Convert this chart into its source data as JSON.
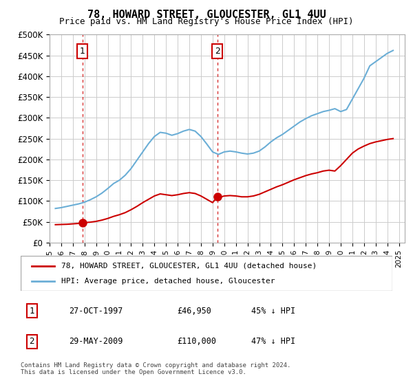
{
  "title": "78, HOWARD STREET, GLOUCESTER, GL1 4UU",
  "subtitle": "Price paid vs. HM Land Registry's House Price Index (HPI)",
  "legend_line1": "78, HOWARD STREET, GLOUCESTER, GL1 4UU (detached house)",
  "legend_line2": "HPI: Average price, detached house, Gloucester",
  "footer": "Contains HM Land Registry data © Crown copyright and database right 2024.\nThis data is licensed under the Open Government Licence v3.0.",
  "transactions": [
    {
      "num": 1,
      "date": "27-OCT-1997",
      "price": "£46,950",
      "pct": "45% ↓ HPI",
      "year": 1997.82,
      "value": 46950
    },
    {
      "num": 2,
      "date": "29-MAY-2009",
      "price": "£110,000",
      "pct": "47% ↓ HPI",
      "year": 2009.41,
      "value": 110000
    }
  ],
  "hpi_color": "#6baed6",
  "price_color": "#cc0000",
  "marker_color": "#cc0000",
  "vline_color": "#cc0000",
  "ylim": [
    0,
    500000
  ],
  "xlim_start": 1995.0,
  "xlim_end": 2025.5,
  "yticks": [
    0,
    50000,
    100000,
    150000,
    200000,
    250000,
    300000,
    350000,
    400000,
    450000,
    500000
  ],
  "ytick_labels": [
    "£0",
    "£50K",
    "£100K",
    "£150K",
    "£200K",
    "£250K",
    "£300K",
    "£350K",
    "£400K",
    "£450K",
    "£500K"
  ],
  "hpi_data": {
    "years": [
      1995.5,
      1996.0,
      1996.5,
      1997.0,
      1997.5,
      1998.0,
      1998.5,
      1999.0,
      1999.5,
      2000.0,
      2000.5,
      2001.0,
      2001.5,
      2002.0,
      2002.5,
      2003.0,
      2003.5,
      2004.0,
      2004.5,
      2005.0,
      2005.5,
      2006.0,
      2006.5,
      2007.0,
      2007.5,
      2008.0,
      2008.5,
      2009.0,
      2009.5,
      2010.0,
      2010.5,
      2011.0,
      2011.5,
      2012.0,
      2012.5,
      2013.0,
      2013.5,
      2014.0,
      2014.5,
      2015.0,
      2015.5,
      2016.0,
      2016.5,
      2017.0,
      2017.5,
      2018.0,
      2018.5,
      2019.0,
      2019.5,
      2020.0,
      2020.5,
      2021.0,
      2021.5,
      2022.0,
      2022.5,
      2023.0,
      2023.5,
      2024.0,
      2024.5
    ],
    "values": [
      82000,
      84000,
      87000,
      90000,
      93000,
      97000,
      103000,
      110000,
      119000,
      130000,
      142000,
      150000,
      162000,
      178000,
      198000,
      218000,
      238000,
      255000,
      265000,
      263000,
      258000,
      262000,
      268000,
      272000,
      268000,
      255000,
      237000,
      218000,
      212000,
      218000,
      220000,
      218000,
      215000,
      213000,
      215000,
      220000,
      230000,
      242000,
      252000,
      260000,
      270000,
      280000,
      290000,
      298000,
      305000,
      310000,
      315000,
      318000,
      322000,
      315000,
      320000,
      345000,
      370000,
      395000,
      425000,
      435000,
      445000,
      455000,
      462000
    ]
  },
  "price_data": {
    "years": [
      1995.5,
      1996.0,
      1996.5,
      1997.0,
      1997.5,
      1997.82,
      1998.0,
      1998.5,
      1999.0,
      1999.5,
      2000.0,
      2000.5,
      2001.0,
      2001.5,
      2002.0,
      2002.5,
      2003.0,
      2003.5,
      2004.0,
      2004.5,
      2005.0,
      2005.5,
      2006.0,
      2006.5,
      2007.0,
      2007.5,
      2008.0,
      2008.5,
      2009.0,
      2009.41,
      2009.5,
      2010.0,
      2010.5,
      2011.0,
      2011.5,
      2012.0,
      2012.5,
      2013.0,
      2013.5,
      2014.0,
      2014.5,
      2015.0,
      2015.5,
      2016.0,
      2016.5,
      2017.0,
      2017.5,
      2018.0,
      2018.5,
      2019.0,
      2019.5,
      2020.0,
      2020.5,
      2021.0,
      2021.5,
      2022.0,
      2022.5,
      2023.0,
      2023.5,
      2024.0,
      2024.5
    ],
    "values": [
      43000,
      43500,
      44000,
      45000,
      46000,
      46950,
      48000,
      49000,
      51000,
      54000,
      58000,
      63000,
      67000,
      72000,
      79000,
      87000,
      96000,
      104000,
      112000,
      117000,
      115000,
      113000,
      115000,
      118000,
      120000,
      118000,
      112000,
      104000,
      96000,
      110000,
      108000,
      112000,
      113000,
      112000,
      110000,
      110000,
      112000,
      116000,
      122000,
      128000,
      134000,
      139000,
      145000,
      151000,
      156000,
      161000,
      165000,
      168000,
      172000,
      174000,
      172000,
      185000,
      200000,
      215000,
      225000,
      232000,
      238000,
      242000,
      245000,
      248000,
      250000
    ]
  }
}
